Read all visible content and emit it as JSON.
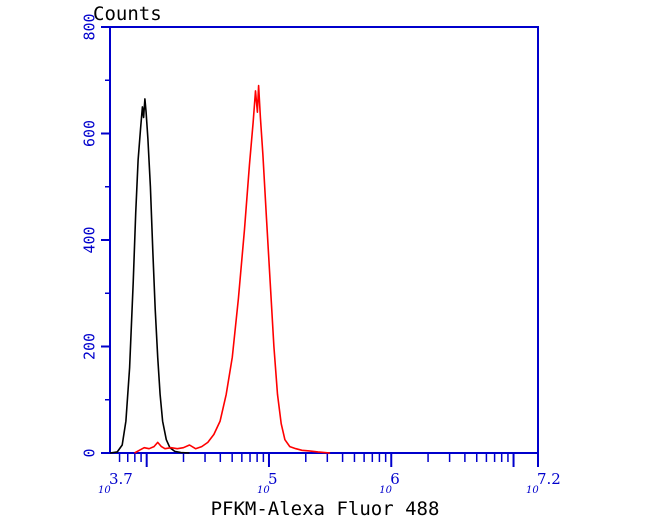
{
  "chart_data": {
    "type": "line",
    "title": "",
    "xlabel": "PFKM-Alexa Fluor 488",
    "ylabel": "Counts",
    "x_scale": "log10",
    "xlim_log10": [
      3.7,
      7.2
    ],
    "ylim": [
      0,
      800
    ],
    "y_ticks": [
      {
        "value": 0,
        "label": "0"
      },
      {
        "value": 200,
        "label": "200"
      },
      {
        "value": 400,
        "label": "400"
      },
      {
        "value": 600,
        "label": "600"
      },
      {
        "value": 800,
        "label": "800"
      }
    ],
    "x_tick_labels": [
      {
        "log10": 3.7,
        "base": "10",
        "exp": "3.7"
      },
      {
        "log10": 5,
        "base": "10",
        "exp": "5"
      },
      {
        "log10": 6,
        "base": "10",
        "exp": "6"
      },
      {
        "log10": 7.2,
        "base": "10",
        "exp": "7.2"
      }
    ],
    "grid": false,
    "series": [
      {
        "color": "#000000",
        "points": [
          [
            3.7,
            0
          ],
          [
            3.76,
            2
          ],
          [
            3.8,
            15
          ],
          [
            3.83,
            60
          ],
          [
            3.86,
            160
          ],
          [
            3.89,
            320
          ],
          [
            3.91,
            450
          ],
          [
            3.93,
            550
          ],
          [
            3.95,
            610
          ],
          [
            3.965,
            650
          ],
          [
            3.975,
            630
          ],
          [
            3.985,
            665
          ],
          [
            3.995,
            640
          ],
          [
            4.01,
            590
          ],
          [
            4.03,
            500
          ],
          [
            4.05,
            380
          ],
          [
            4.07,
            270
          ],
          [
            4.09,
            180
          ],
          [
            4.11,
            110
          ],
          [
            4.13,
            60
          ],
          [
            4.16,
            25
          ],
          [
            4.19,
            10
          ],
          [
            4.23,
            3
          ],
          [
            4.28,
            1
          ],
          [
            4.35,
            0
          ]
        ]
      },
      {
        "color": "#ff0000",
        "points": [
          [
            3.9,
            0
          ],
          [
            3.94,
            5
          ],
          [
            3.98,
            10
          ],
          [
            4.02,
            8
          ],
          [
            4.06,
            12
          ],
          [
            4.09,
            20
          ],
          [
            4.12,
            12
          ],
          [
            4.15,
            8
          ],
          [
            4.2,
            10
          ],
          [
            4.25,
            8
          ],
          [
            4.3,
            10
          ],
          [
            4.35,
            15
          ],
          [
            4.4,
            8
          ],
          [
            4.45,
            12
          ],
          [
            4.5,
            20
          ],
          [
            4.55,
            35
          ],
          [
            4.6,
            60
          ],
          [
            4.65,
            110
          ],
          [
            4.7,
            180
          ],
          [
            4.75,
            290
          ],
          [
            4.8,
            420
          ],
          [
            4.84,
            540
          ],
          [
            4.87,
            620
          ],
          [
            4.89,
            680
          ],
          [
            4.905,
            640
          ],
          [
            4.915,
            690
          ],
          [
            4.93,
            630
          ],
          [
            4.95,
            560
          ],
          [
            4.98,
            440
          ],
          [
            5.01,
            320
          ],
          [
            5.04,
            200
          ],
          [
            5.07,
            110
          ],
          [
            5.1,
            55
          ],
          [
            5.13,
            25
          ],
          [
            5.17,
            12
          ],
          [
            5.22,
            8
          ],
          [
            5.27,
            5
          ],
          [
            5.33,
            4
          ],
          [
            5.4,
            2
          ],
          [
            5.5,
            0
          ]
        ]
      }
    ]
  }
}
